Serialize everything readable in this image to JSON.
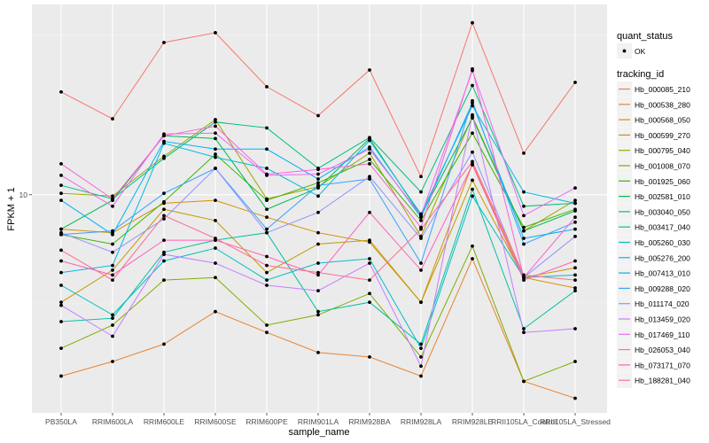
{
  "chart_data": {
    "type": "line",
    "title": "",
    "xlabel": "sample_name",
    "ylabel": "FPKM + 1",
    "y_scale": "log10",
    "ylim": [
      2.07,
      39.5
    ],
    "y_ticks": [
      10
    ],
    "y_tick_labels": [
      "10"
    ],
    "grid": true,
    "legend_position": "right",
    "categories": [
      "PB350LA",
      "RRIM600LA",
      "RRIM600LE",
      "RRIM600SE",
      "RRIM600PE",
      "RRIM901LA",
      "RRIM928BA",
      "RRIM928LA",
      "RRIM928LE",
      "RRII105LA_Control",
      "RRII105LA_Stressed"
    ],
    "point_legend": {
      "title": "quant_status",
      "entries": [
        "OK"
      ]
    },
    "line_legend_title": "tracking_id",
    "series": [
      {
        "name": "Hb_000085_210",
        "color": "#F8766D",
        "values": [
          21.0,
          17.3,
          30.0,
          32.2,
          21.8,
          17.7,
          24.6,
          11.4,
          34.6,
          13.5,
          22.5
        ]
      },
      {
        "name": "Hb_000538_280",
        "color": "#EA8331",
        "values": [
          2.7,
          3.0,
          3.4,
          4.3,
          3.7,
          3.2,
          3.1,
          2.7,
          6.3,
          2.6,
          2.3
        ]
      },
      {
        "name": "Hb_000568_050",
        "color": "#D89000",
        "values": [
          7.8,
          7.6,
          9.4,
          9.6,
          8.5,
          7.6,
          7.1,
          4.6,
          12.5,
          5.5,
          5.1
        ]
      },
      {
        "name": "Hb_000599_270",
        "color": "#C09B00",
        "values": [
          4.6,
          5.8,
          9.0,
          8.3,
          5.7,
          7.0,
          7.2,
          4.6,
          11.1,
          5.5,
          5.9
        ]
      },
      {
        "name": "Hb_000795_040",
        "color": "#A3A500",
        "values": [
          10.1,
          9.9,
          13.2,
          17.2,
          9.7,
          10.6,
          13.5,
          7.4,
          17.6,
          7.7,
          9.6
        ]
      },
      {
        "name": "Hb_001008_070",
        "color": "#7CAE00",
        "values": [
          3.3,
          3.9,
          5.4,
          5.5,
          3.9,
          4.2,
          4.9,
          3.1,
          6.9,
          2.6,
          3.0
        ]
      },
      {
        "name": "Hb_001925_060",
        "color": "#39B600",
        "values": [
          7.5,
          7.0,
          9.5,
          13.4,
          9.6,
          10.9,
          12.9,
          8.3,
          15.6,
          7.9,
          9.0
        ]
      },
      {
        "name": "Hb_002581_010",
        "color": "#00BB4E",
        "values": [
          7.8,
          9.6,
          15.3,
          15.0,
          9.0,
          10.5,
          15.0,
          8.6,
          17.4,
          7.7,
          8.9
        ]
      },
      {
        "name": "Hb_003040_050",
        "color": "#00BF7D",
        "values": [
          10.7,
          9.7,
          13.0,
          16.9,
          16.2,
          12.1,
          15.1,
          10.2,
          22.0,
          9.2,
          9.4
        ]
      },
      {
        "name": "Hb_003417_040",
        "color": "#00C1A3",
        "values": [
          4.0,
          4.1,
          6.6,
          7.2,
          7.6,
          4.3,
          4.6,
          3.4,
          10.4,
          3.8,
          5.0
        ]
      },
      {
        "name": "Hb_005260_030",
        "color": "#00BFC4",
        "values": [
          5.2,
          4.2,
          6.2,
          6.8,
          5.4,
          6.1,
          6.3,
          3.3,
          9.9,
          5.5,
          5.6
        ]
      },
      {
        "name": "Hb_005276_200",
        "color": "#00BAE0",
        "values": [
          5.7,
          6.0,
          14.5,
          13.1,
          12.1,
          9.9,
          14.8,
          8.7,
          19.0,
          10.2,
          9.4
        ]
      },
      {
        "name": "Hb_007413_010",
        "color": "#00B0F6",
        "values": [
          9.6,
          7.5,
          14.7,
          13.9,
          13.9,
          11.2,
          14.1,
          8.5,
          19.4,
          7.3,
          7.8
        ]
      },
      {
        "name": "Hb_009288_020",
        "color": "#35A2FF",
        "values": [
          7.5,
          7.7,
          10.1,
          12.1,
          7.8,
          10.7,
          11.2,
          6.1,
          19.7,
          7.0,
          8.2
        ]
      },
      {
        "name": "Hb_011174_020",
        "color": "#9590FF",
        "values": [
          7.6,
          6.6,
          8.4,
          12.1,
          7.6,
          8.8,
          11.4,
          7.3,
          13.6,
          5.5,
          7.4
        ]
      },
      {
        "name": "Hb_013459_020",
        "color": "#C77CFF",
        "values": [
          4.5,
          3.6,
          6.5,
          6.1,
          5.2,
          5.0,
          6.1,
          2.9,
          17.8,
          3.7,
          3.8
        ]
      },
      {
        "name": "Hb_017469_110",
        "color": "#E76BF3",
        "values": [
          11.5,
          9.2,
          15.5,
          15.6,
          11.5,
          11.6,
          13.9,
          8.6,
          24.5,
          8.6,
          10.5
        ]
      },
      {
        "name": "Hb_026053_040",
        "color": "#FA62DB",
        "values": [
          12.5,
          9.7,
          15.3,
          16.4,
          11.6,
          12.0,
          12.5,
          7.9,
          24.8,
          5.5,
          8.5
        ]
      },
      {
        "name": "Hb_073171_070",
        "color": "#FF62BC",
        "values": [
          6.2,
          5.6,
          7.2,
          7.2,
          6.4,
          5.6,
          8.8,
          5.8,
          12.4,
          5.4,
          6.2
        ]
      },
      {
        "name": "Hb_188281_040",
        "color": "#FF6C91",
        "values": [
          6.7,
          5.4,
          8.6,
          7.3,
          6.0,
          5.7,
          5.4,
          7.8,
          12.7,
          5.6,
          5.4
        ]
      }
    ]
  }
}
